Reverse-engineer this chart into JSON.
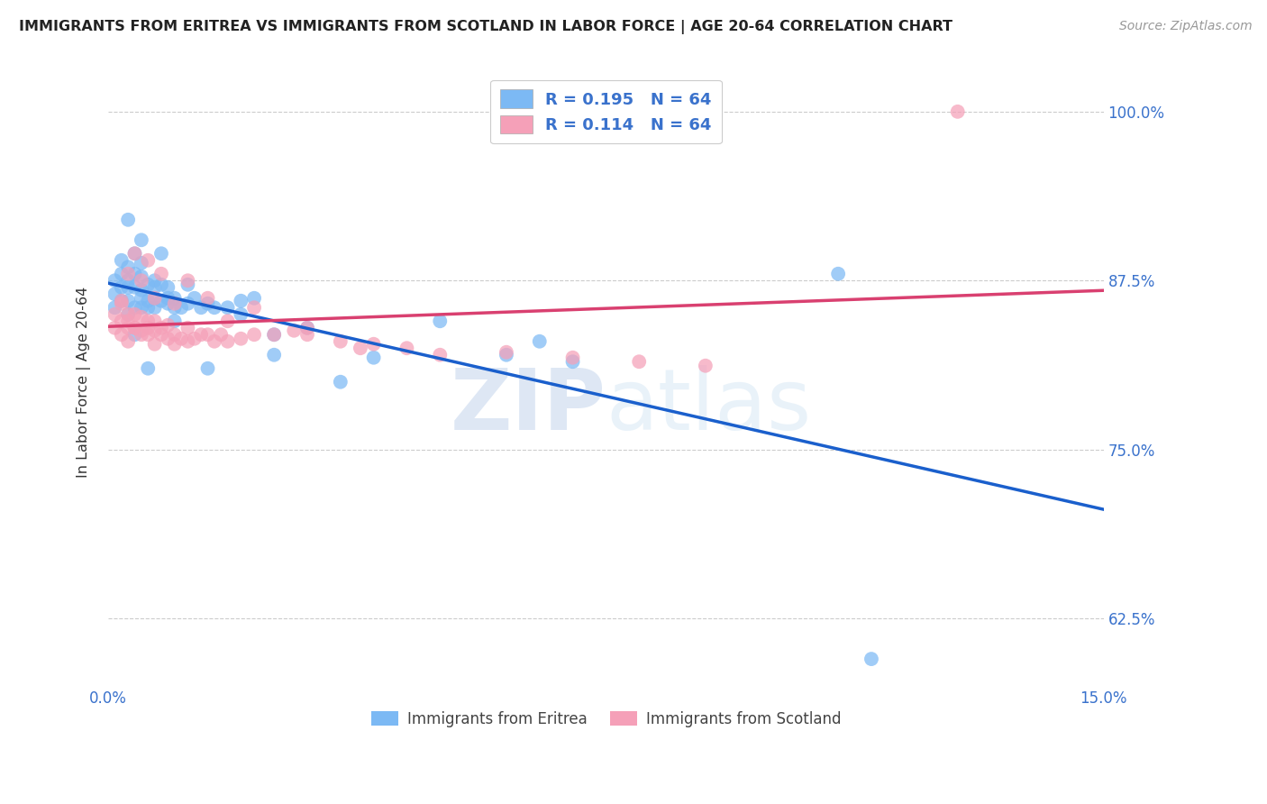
{
  "title": "IMMIGRANTS FROM ERITREA VS IMMIGRANTS FROM SCOTLAND IN LABOR FORCE | AGE 20-64 CORRELATION CHART",
  "source": "Source: ZipAtlas.com",
  "ylabel": "In Labor Force | Age 20-64",
  "x_min": 0.0,
  "x_max": 0.15,
  "y_min": 0.575,
  "y_max": 1.025,
  "y_ticks": [
    0.625,
    0.75,
    0.875,
    1.0
  ],
  "y_tick_labels": [
    "62.5%",
    "75.0%",
    "87.5%",
    "100.0%"
  ],
  "legend_labels": [
    "Immigrants from Eritrea",
    "Immigrants from Scotland"
  ],
  "r_eritrea": 0.195,
  "n_eritrea": 64,
  "r_scotland": 0.114,
  "n_scotland": 64,
  "color_eritrea": "#7cb9f4",
  "color_scotland": "#f5a0b8",
  "line_color_eritrea": "#1a5fcc",
  "line_color_scotland": "#d94070",
  "background_color": "#ffffff",
  "watermark_zip": "ZIP",
  "watermark_atlas": "atlas",
  "scatter_eritrea_x": [
    0.001,
    0.001,
    0.001,
    0.002,
    0.002,
    0.002,
    0.002,
    0.003,
    0.003,
    0.003,
    0.003,
    0.003,
    0.004,
    0.004,
    0.004,
    0.004,
    0.005,
    0.005,
    0.005,
    0.005,
    0.005,
    0.006,
    0.006,
    0.006,
    0.007,
    0.007,
    0.007,
    0.008,
    0.008,
    0.009,
    0.009,
    0.01,
    0.01,
    0.011,
    0.012,
    0.013,
    0.014,
    0.015,
    0.016,
    0.018,
    0.02,
    0.022,
    0.025,
    0.03,
    0.035,
    0.04,
    0.05,
    0.06,
    0.065,
    0.07,
    0.003,
    0.004,
    0.005,
    0.006,
    0.007,
    0.008,
    0.009,
    0.01,
    0.012,
    0.015,
    0.02,
    0.025,
    0.11,
    0.115
  ],
  "scatter_eritrea_y": [
    0.855,
    0.875,
    0.865,
    0.87,
    0.88,
    0.89,
    0.86,
    0.85,
    0.87,
    0.885,
    0.86,
    0.875,
    0.855,
    0.87,
    0.88,
    0.895,
    0.855,
    0.868,
    0.878,
    0.862,
    0.888,
    0.86,
    0.872,
    0.855,
    0.862,
    0.875,
    0.855,
    0.86,
    0.872,
    0.858,
    0.87,
    0.855,
    0.862,
    0.855,
    0.858,
    0.862,
    0.855,
    0.858,
    0.855,
    0.855,
    0.86,
    0.862,
    0.835,
    0.84,
    0.8,
    0.818,
    0.845,
    0.82,
    0.83,
    0.815,
    0.92,
    0.835,
    0.905,
    0.81,
    0.87,
    0.895,
    0.862,
    0.845,
    0.872,
    0.81,
    0.85,
    0.82,
    0.88,
    0.595
  ],
  "scatter_scotland_x": [
    0.001,
    0.001,
    0.002,
    0.002,
    0.002,
    0.003,
    0.003,
    0.003,
    0.003,
    0.004,
    0.004,
    0.004,
    0.005,
    0.005,
    0.005,
    0.006,
    0.006,
    0.006,
    0.007,
    0.007,
    0.007,
    0.008,
    0.008,
    0.009,
    0.009,
    0.01,
    0.01,
    0.011,
    0.012,
    0.012,
    0.013,
    0.014,
    0.015,
    0.016,
    0.017,
    0.018,
    0.02,
    0.022,
    0.025,
    0.028,
    0.03,
    0.035,
    0.038,
    0.04,
    0.045,
    0.05,
    0.06,
    0.07,
    0.08,
    0.09,
    0.002,
    0.003,
    0.004,
    0.005,
    0.006,
    0.007,
    0.008,
    0.01,
    0.012,
    0.015,
    0.018,
    0.022,
    0.03,
    0.128
  ],
  "scatter_scotland_y": [
    0.84,
    0.85,
    0.835,
    0.845,
    0.858,
    0.84,
    0.85,
    0.83,
    0.845,
    0.84,
    0.85,
    0.84,
    0.838,
    0.848,
    0.835,
    0.84,
    0.845,
    0.835,
    0.845,
    0.838,
    0.828,
    0.835,
    0.84,
    0.832,
    0.842,
    0.835,
    0.828,
    0.832,
    0.83,
    0.84,
    0.832,
    0.835,
    0.835,
    0.83,
    0.835,
    0.83,
    0.832,
    0.835,
    0.835,
    0.838,
    0.835,
    0.83,
    0.825,
    0.828,
    0.825,
    0.82,
    0.822,
    0.818,
    0.815,
    0.812,
    0.86,
    0.88,
    0.895,
    0.875,
    0.89,
    0.862,
    0.88,
    0.858,
    0.875,
    0.862,
    0.845,
    0.855,
    0.84,
    1.0
  ]
}
